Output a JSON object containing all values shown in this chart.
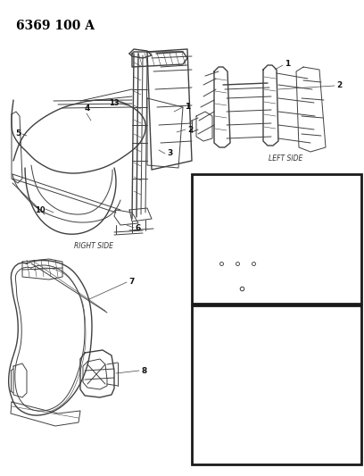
{
  "title": "6369 100 A",
  "bg_color": "#ffffff",
  "title_fontsize": 10,
  "title_weight": "bold",
  "title_font": "serif",
  "line_color": "#404040",
  "label_fontsize": 5.5,
  "number_fontsize": 6.5,
  "labels": {
    "right_side": "RIGHT SIDE",
    "left_side": "LEFT SIDE"
  }
}
